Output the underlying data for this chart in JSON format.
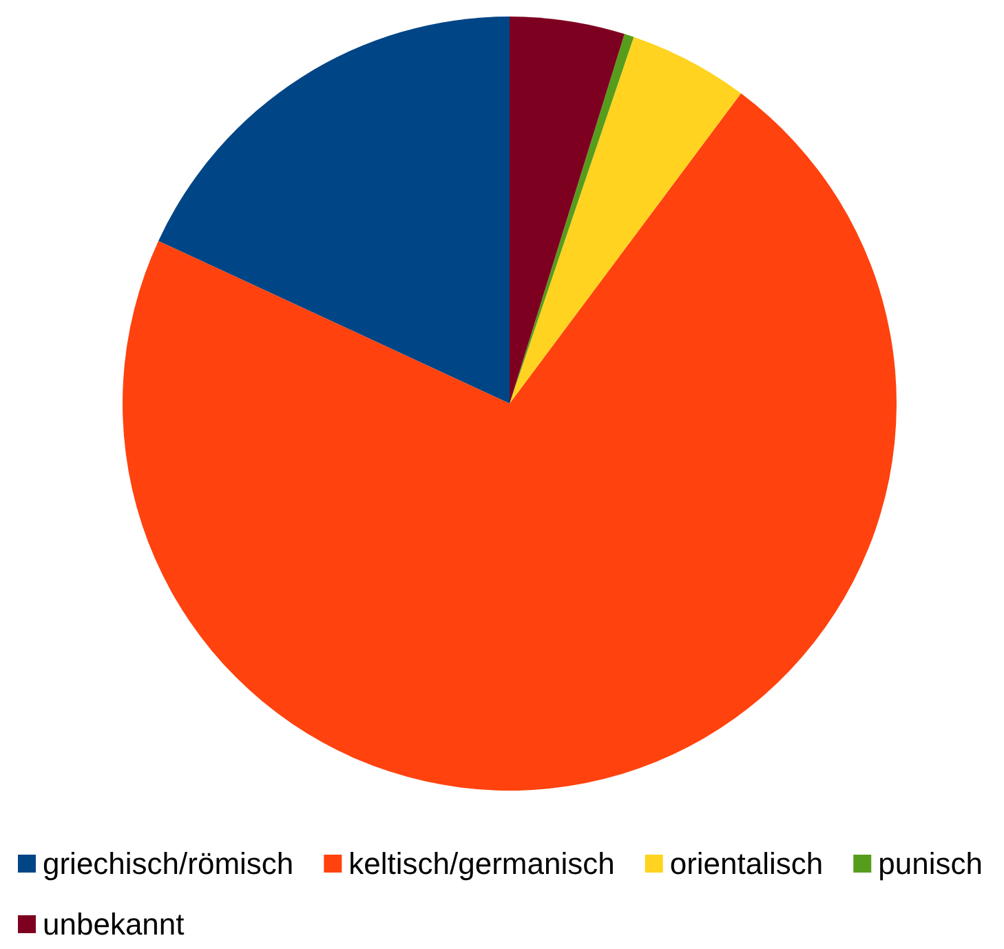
{
  "chart_data": {
    "type": "pie",
    "categories": [
      "griechisch/römisch",
      "keltisch/germanisch",
      "orientalisch",
      "punisch",
      "unbekannt"
    ],
    "values": [
      18.1,
      71.7,
      5.0,
      0.4,
      4.8
    ],
    "colors": [
      "#004586",
      "#ff420e",
      "#ffd320",
      "#579d1c",
      "#7e0021"
    ],
    "legend": "bottom"
  }
}
